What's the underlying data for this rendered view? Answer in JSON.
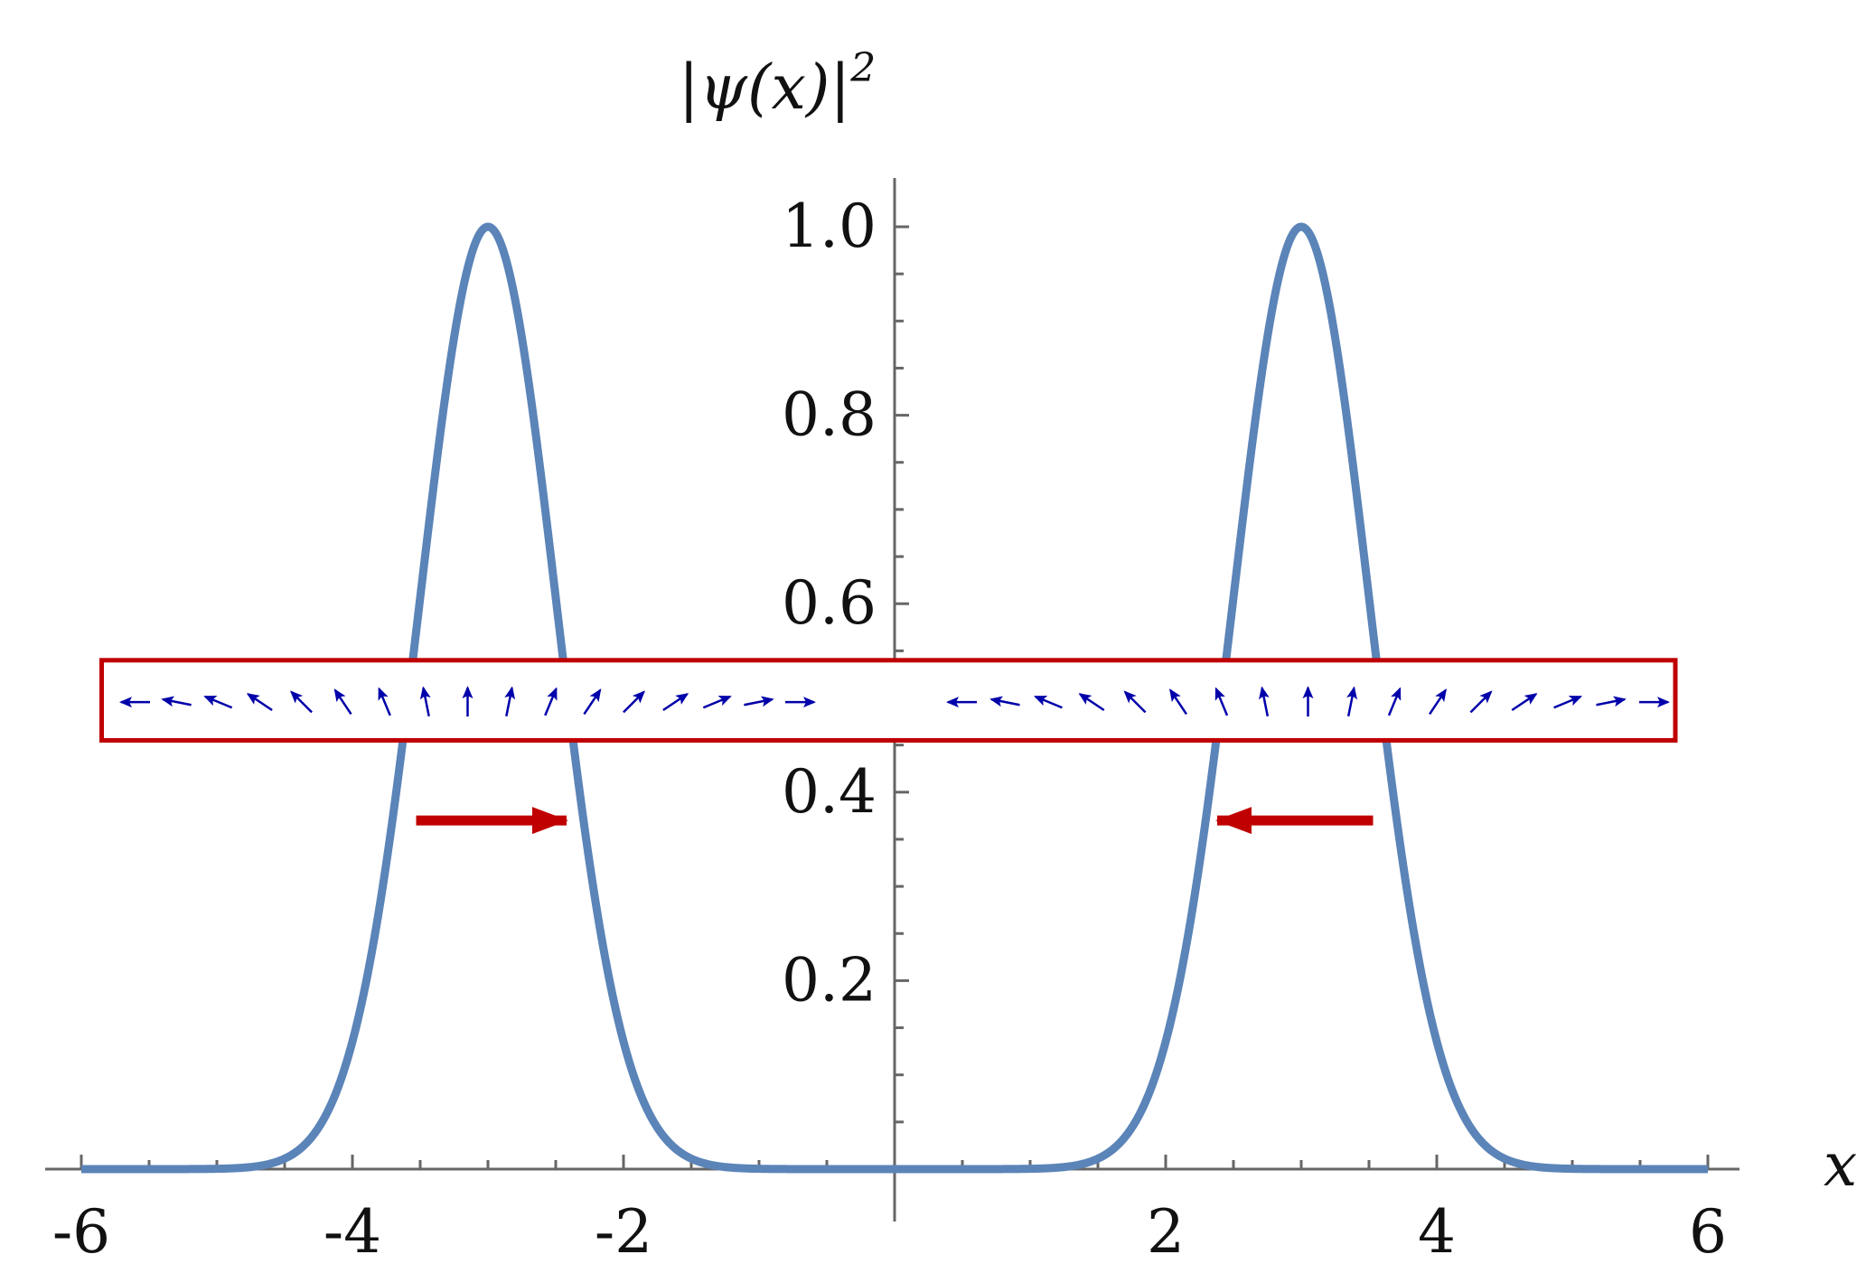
{
  "chart_data": {
    "type": "line",
    "title": "",
    "xlabel": "x",
    "ylabel_parts": {
      "pre": "|ψ(",
      "var": "x",
      "post": ")|",
      "sup": "2"
    },
    "xlim": [
      -6,
      6
    ],
    "ylim": [
      0,
      1.05
    ],
    "x_ticks": [
      {
        "value": -6,
        "label": "-6"
      },
      {
        "value": -4,
        "label": "-4"
      },
      {
        "value": -2,
        "label": "-2"
      },
      {
        "value": 2,
        "label": "2"
      },
      {
        "value": 4,
        "label": "4"
      },
      {
        "value": 6,
        "label": "6"
      }
    ],
    "y_ticks": [
      {
        "value": 0.2,
        "label": "0.2"
      },
      {
        "value": 0.4,
        "label": "0.4"
      },
      {
        "value": 0.6,
        "label": "0.6"
      },
      {
        "value": 0.8,
        "label": "0.8"
      },
      {
        "value": 1.0,
        "label": "1.0"
      }
    ],
    "grid": false,
    "series": [
      {
        "color": "#5b84b8",
        "curve": "sum of two Gaussian peaks",
        "peaks": [
          {
            "center": -3,
            "height": 1.0,
            "sigma": 0.5
          },
          {
            "center": 3,
            "height": 1.0,
            "sigma": 0.5
          }
        ]
      }
    ],
    "spin_strip": {
      "frame_color": "#c00000",
      "arrow_color": "#0000aa",
      "y_range": [
        0.455,
        0.54
      ],
      "x_range": [
        -5.85,
        5.76
      ],
      "groups": [
        {
          "x_start": -5.6,
          "x_end": -0.7,
          "count": 17
        },
        {
          "x_start": 0.5,
          "x_end": 5.6,
          "count": 17
        }
      ]
    },
    "annotations": [
      {
        "type": "arrow",
        "color": "#c00000",
        "from": [
          -3.53,
          0.37
        ],
        "to": [
          -2.42,
          0.37
        ]
      },
      {
        "type": "arrow",
        "color": "#c00000",
        "from": [
          3.53,
          0.37
        ],
        "to": [
          2.38,
          0.37
        ]
      }
    ]
  }
}
